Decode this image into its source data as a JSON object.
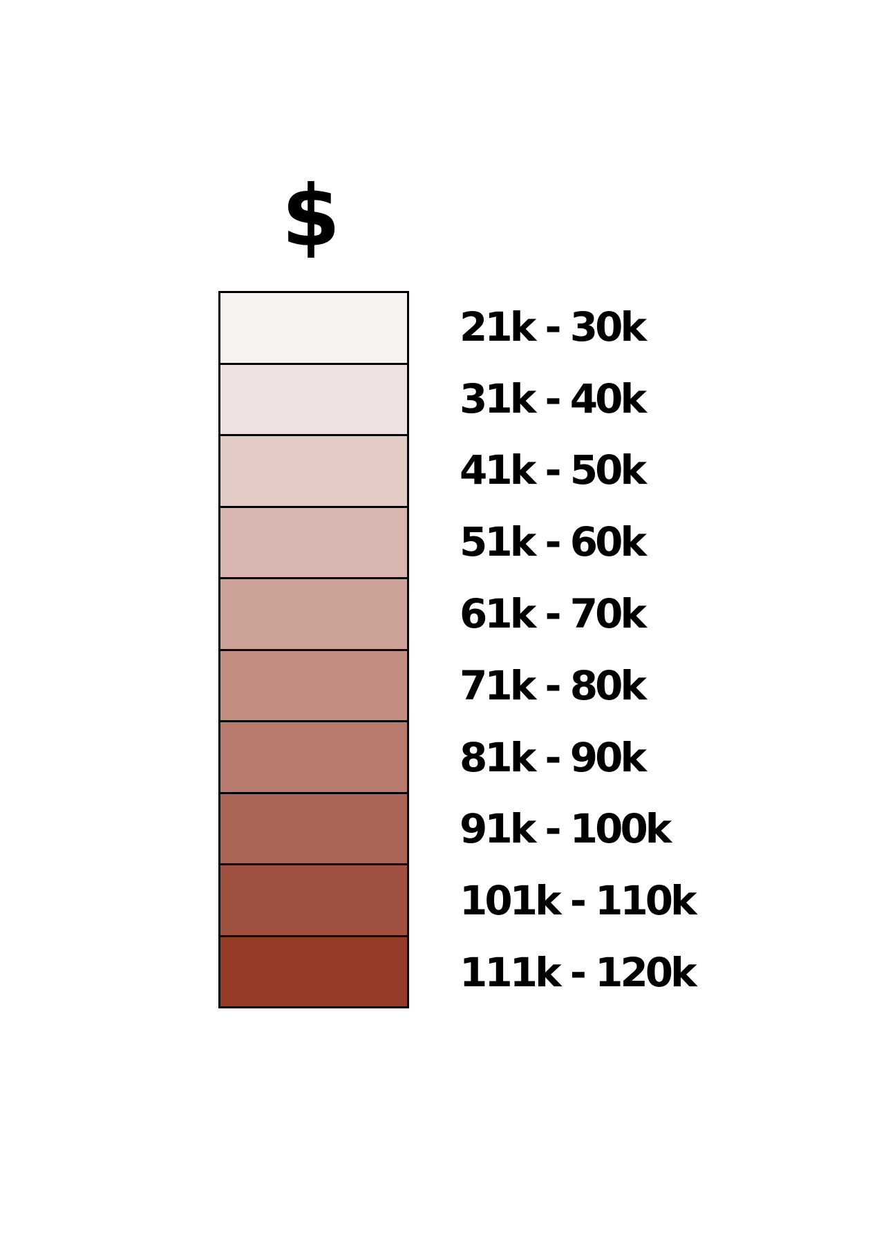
{
  "legend": {
    "title": "$",
    "bins": [
      {
        "label": "21k - 30k",
        "color": "#f7f3f1"
      },
      {
        "label": "31k - 40k",
        "color": "#efe1df"
      },
      {
        "label": "41k - 50k",
        "color": "#e3cbc5"
      },
      {
        "label": "51k - 60k",
        "color": "#d8b6af"
      },
      {
        "label": "61k - 70k",
        "color": "#cda298"
      },
      {
        "label": "71k - 80k",
        "color": "#c28e82"
      },
      {
        "label": "81k - 90k",
        "color": "#b77a6c"
      },
      {
        "label": "91k - 100k",
        "color": "#ab6555"
      },
      {
        "label": "101k - 110k",
        "color": "#a1513f"
      },
      {
        "label": "111k - 120k",
        "color": "#953b28"
      }
    ]
  }
}
